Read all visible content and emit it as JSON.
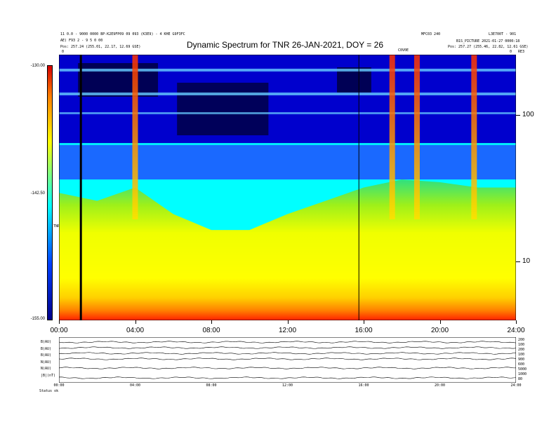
{
  "header": {
    "title": "Dynamic Spectrum for TNR 26-JAN-2021, DOY = 26",
    "left_line1": "11 0.0 - 9000 0000 BP-K2E9FP09 09 093 (K3E9) - 4 KHE G9F3FC",
    "left_line2": "AE) F93 2 - 9 5 0 00",
    "left_line3": "Pos:  257.24 (255.01, 22.17, 12.69 GSE)",
    "right_line1": "MFC03 240",
    "right_line2": "L3E700T - 901",
    "right_line3": "B1S_PICTURE 2021-01-27 0000:18",
    "right_line4": "Pos:  257.27 (255.46, 22.82, 12.61 GSE)",
    "marker_top_left": "0",
    "marker_top_right": "0",
    "marker_corner": "RE3",
    "marker_mid": "C0V0E"
  },
  "chart_data": {
    "type": "heatmap",
    "title": "Dynamic Spectrum for TNR 26-JAN-2021, DOY = 26",
    "x_ticks": [
      "00:00",
      "04:00",
      "08:00",
      "12:00",
      "16:00",
      "20:00",
      "24:00"
    ],
    "x_range_hours": [
      0,
      24
    ],
    "y_scale": "log",
    "y_ticks": [
      "100",
      "10"
    ],
    "y_range": [
      4.5,
      240
    ],
    "colorbar": {
      "ticks": [
        "-130.00",
        "-142.50",
        "-155.00"
      ],
      "range": [
        -155.0,
        -130.0
      ],
      "label": "TNR",
      "colors": [
        "#d40000",
        "#ff8000",
        "#ffff00",
        "#00ffff",
        "#0000ff",
        "#00008b"
      ]
    },
    "vertical_lines_hours": [
      1.15,
      15.75
    ],
    "strong_bursts_hours": [
      4.0,
      17.5,
      18.8,
      21.8
    ],
    "background_profile": [
      {
        "t": 0,
        "level": 0.52
      },
      {
        "t": 2,
        "level": 0.55
      },
      {
        "t": 4,
        "level": 0.5
      },
      {
        "t": 6,
        "level": 0.6
      },
      {
        "t": 8,
        "level": 0.66
      },
      {
        "t": 10,
        "level": 0.66
      },
      {
        "t": 12,
        "level": 0.6
      },
      {
        "t": 14,
        "level": 0.55
      },
      {
        "t": 16,
        "level": 0.5
      },
      {
        "t": 18,
        "level": 0.47
      },
      {
        "t": 20,
        "level": 0.48
      },
      {
        "t": 22,
        "level": 0.5
      },
      {
        "t": 24,
        "level": 0.5
      }
    ]
  },
  "subpanel": {
    "left_labels": [
      "B(AU)",
      "B(AU)",
      "B(AU)",
      "N(AU)",
      "N(AU)",
      "|B|(nT)"
    ],
    "right_labels": [
      "200",
      "100",
      "200",
      "100",
      "900",
      "600",
      "5000",
      "1000",
      "80"
    ],
    "x_ticks": [
      "00:00",
      "04:00",
      "08:00",
      "12:00",
      "16:00",
      "20:00",
      "24:00"
    ],
    "footer": "Status  ok"
  }
}
